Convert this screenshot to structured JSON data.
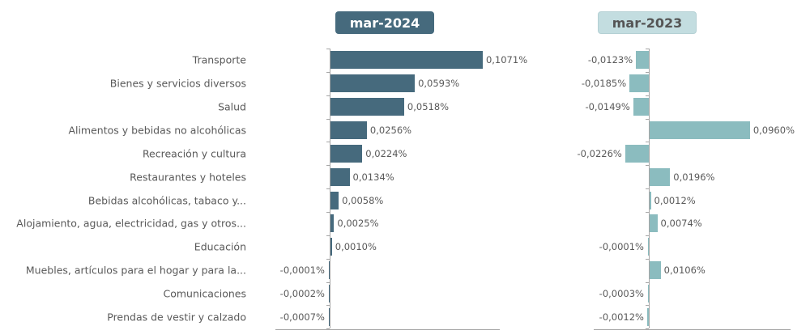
{
  "chart_data": [
    {
      "type": "bar",
      "orientation": "horizontal",
      "title": "mar-2024",
      "categories": [
        "Transporte",
        "Bienes y servicios diversos",
        "Salud",
        "Alimentos y bebidas no alcohólicas",
        "Recreación y cultura",
        "Restaurantes y hoteles",
        "Bebidas alcohólicas, tabaco y...",
        "Alojamiento, agua, electricidad, gas y otros...",
        "Educación",
        "Muebles, artículos para el hogar y para la...",
        "Comunicaciones",
        "Prendas de vestir y calzado"
      ],
      "values": [
        0.1071,
        0.0593,
        0.0518,
        0.0256,
        0.0224,
        0.0134,
        0.0058,
        0.0025,
        0.001,
        -0.0001,
        -0.0002,
        -0.0007
      ],
      "labels": [
        "0,1071%",
        "0,0593%",
        "0,0518%",
        "0,0256%",
        "0,0224%",
        "0,0134%",
        "0,0058%",
        "0,0025%",
        "0,0010%",
        "-0,0001%",
        "-0,0002%",
        "-0,0007%"
      ],
      "color": "#466a7d",
      "unit": "%",
      "grid": false
    },
    {
      "type": "bar",
      "orientation": "horizontal",
      "title": "mar-2023",
      "categories": [
        "Transporte",
        "Bienes y servicios diversos",
        "Salud",
        "Alimentos y bebidas no alcohólicas",
        "Recreación y cultura",
        "Restaurantes y hoteles",
        "Bebidas alcohólicas, tabaco y...",
        "Alojamiento, agua, electricidad, gas y otros...",
        "Educación",
        "Muebles, artículos para el hogar y para la...",
        "Comunicaciones",
        "Prendas de vestir y calzado"
      ],
      "values": [
        -0.0123,
        -0.0185,
        -0.0149,
        0.096,
        -0.0226,
        0.0196,
        0.0012,
        0.0074,
        -0.0001,
        0.0106,
        -0.0003,
        -0.0012
      ],
      "labels": [
        "-0,0123%",
        "-0,0185%",
        "-0,0149%",
        "0,0960%",
        "-0,0226%",
        "0,0196%",
        "0,0012%",
        "0,0074%",
        "-0,0001%",
        "0,0106%",
        "-0,0003%",
        "-0,0012%"
      ],
      "color": "#8bbcbf",
      "unit": "%",
      "grid": false
    }
  ],
  "header": {
    "badge_2024": "mar-2024",
    "badge_2023": "mar-2023"
  }
}
